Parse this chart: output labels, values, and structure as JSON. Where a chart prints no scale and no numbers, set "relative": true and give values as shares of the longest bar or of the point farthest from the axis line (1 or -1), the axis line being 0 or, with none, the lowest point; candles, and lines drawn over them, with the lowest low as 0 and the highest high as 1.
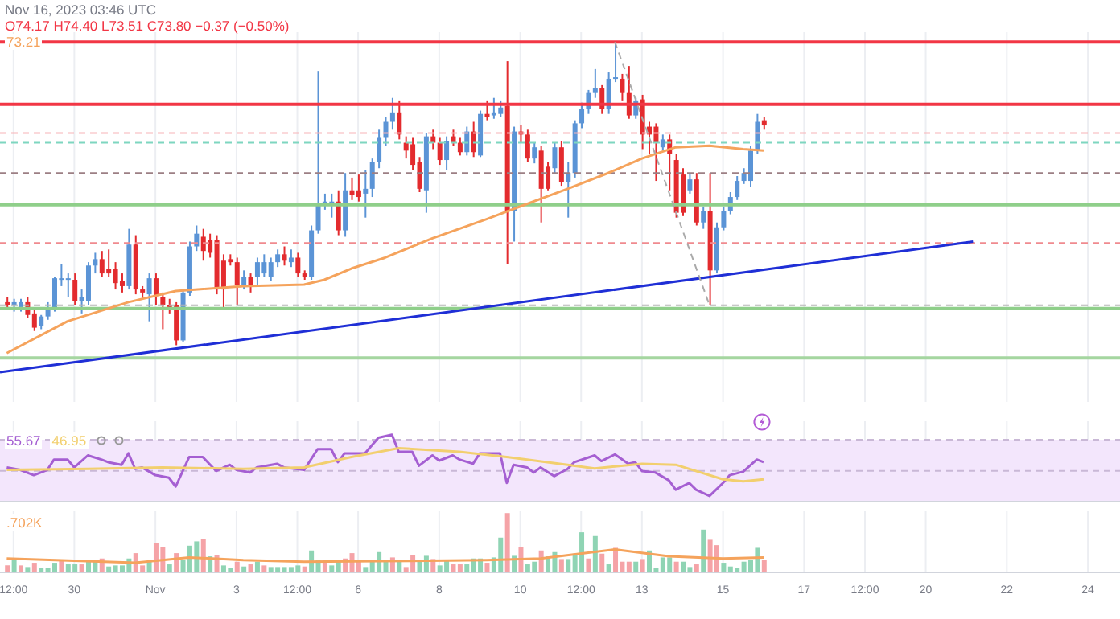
{
  "chart_data": [
    {
      "type": "candlestick",
      "title": "Nov 16, 2023 03:46 UTC",
      "annotations": [
        "O74.17 H74.40 L73.51 C73.80 −0.37 (−0.50%)"
      ],
      "relative": true,
      "grid": "x",
      "tick_labels": false,
      "xlim": [
        "2023-10-28T04:00",
        "2023-11-24T19:00"
      ],
      "xticks": [
        {
          "value": "2023-10-28T12:00",
          "label": null
        },
        {
          "value": "2023-10-30",
          "label": null
        },
        {
          "value": "2023-11-01",
          "label": null
        },
        {
          "value": "2023-11-03",
          "label": null
        },
        {
          "value": "2023-11-04T12:00",
          "label": null
        },
        {
          "value": "2023-11-06",
          "label": null
        },
        {
          "value": "2023-11-08",
          "label": null
        },
        {
          "value": "2023-11-10",
          "label": null
        },
        {
          "value": "2023-11-11T12:00",
          "label": null
        },
        {
          "value": "2023-11-13",
          "label": null
        },
        {
          "value": "2023-11-15",
          "label": null
        },
        {
          "value": "2023-11-17",
          "label": null
        },
        {
          "value": "2023-11-18T12:00",
          "label": null
        },
        {
          "value": "2023-11-20",
          "label": null
        },
        {
          "value": "2023-11-22",
          "label": null
        },
        {
          "value": "2023-11-24",
          "label": null
        }
      ],
      "x": [
        "2023-10-28T08:00",
        "2023-10-28T12:00",
        "2023-10-28T16:00",
        "2023-10-28T20:00",
        "2023-10-29T00:00",
        "2023-10-29T04:00",
        "2023-10-29T08:00",
        "2023-10-29T12:00",
        "2023-10-29T16:00",
        "2023-10-29T20:00",
        "2023-10-30T00:00",
        "2023-10-30T04:00",
        "2023-10-30T08:00",
        "2023-10-30T12:00",
        "2023-10-30T16:00",
        "2023-10-30T20:00",
        "2023-10-31T00:00",
        "2023-10-31T04:00",
        "2023-10-31T08:00",
        "2023-10-31T12:00",
        "2023-10-31T16:00",
        "2023-10-31T20:00",
        "2023-11-01T00:00",
        "2023-11-01T04:00",
        "2023-11-01T08:00",
        "2023-11-01T12:00",
        "2023-11-01T16:00",
        "2023-11-01T20:00",
        "2023-11-02T00:00",
        "2023-11-02T04:00",
        "2023-11-02T08:00",
        "2023-11-02T12:00",
        "2023-11-02T16:00",
        "2023-11-02T20:00",
        "2023-11-03T00:00",
        "2023-11-03T04:00",
        "2023-11-03T08:00",
        "2023-11-03T12:00",
        "2023-11-03T16:00",
        "2023-11-03T20:00",
        "2023-11-04T00:00",
        "2023-11-04T04:00",
        "2023-11-04T08:00",
        "2023-11-04T12:00",
        "2023-11-04T16:00",
        "2023-11-04T20:00",
        "2023-11-05T00:00",
        "2023-11-05T04:00",
        "2023-11-05T08:00",
        "2023-11-05T12:00",
        "2023-11-05T16:00",
        "2023-11-05T20:00",
        "2023-11-06T00:00",
        "2023-11-06T04:00",
        "2023-11-06T08:00",
        "2023-11-06T12:00",
        "2023-11-06T16:00",
        "2023-11-06T20:00",
        "2023-11-07T00:00",
        "2023-11-07T04:00",
        "2023-11-07T08:00",
        "2023-11-07T12:00",
        "2023-11-07T16:00",
        "2023-11-07T20:00",
        "2023-11-08T00:00",
        "2023-11-08T04:00",
        "2023-11-08T08:00",
        "2023-11-08T12:00",
        "2023-11-08T16:00",
        "2023-11-08T20:00",
        "2023-11-09T00:00",
        "2023-11-09T04:00",
        "2023-11-09T08:00",
        "2023-11-09T12:00",
        "2023-11-09T16:00",
        "2023-11-09T20:00",
        "2023-11-10T00:00",
        "2023-11-10T04:00",
        "2023-11-10T08:00",
        "2023-11-10T12:00",
        "2023-11-10T16:00",
        "2023-11-10T20:00",
        "2023-11-11T00:00",
        "2023-11-11T04:00",
        "2023-11-11T08:00",
        "2023-11-11T12:00",
        "2023-11-11T16:00",
        "2023-11-11T20:00",
        "2023-11-12T00:00",
        "2023-11-12T04:00",
        "2023-11-12T08:00",
        "2023-11-12T12:00",
        "2023-11-12T16:00",
        "2023-11-12T20:00",
        "2023-11-13T00:00",
        "2023-11-13T04:00",
        "2023-11-13T08:00",
        "2023-11-13T12:00",
        "2023-11-13T16:00",
        "2023-11-13T20:00",
        "2023-11-14T00:00",
        "2023-11-14T04:00",
        "2023-11-14T08:00",
        "2023-11-14T12:00",
        "2023-11-14T16:00",
        "2023-11-14T20:00",
        "2023-11-15T00:00",
        "2023-11-15T04:00",
        "2023-11-15T08:00",
        "2023-11-15T12:00",
        "2023-11-15T16:00",
        "2023-11-15T20:00",
        "2023-11-16T00:00"
      ],
      "ohlc": [
        [
          0.142,
          0.158,
          0.121,
          0.132
        ],
        [
          0.132,
          0.153,
          0.111,
          0.142
        ],
        [
          0.121,
          0.153,
          0.111,
          0.142
        ],
        [
          0.142,
          0.158,
          0.089,
          0.1
        ],
        [
          0.105,
          0.121,
          0.047,
          0.058
        ],
        [
          0.063,
          0.1,
          0.053,
          0.095
        ],
        [
          0.095,
          0.142,
          0.084,
          0.121
        ],
        [
          0.121,
          0.226,
          0.111,
          0.221
        ],
        [
          0.216,
          0.268,
          0.195,
          0.221
        ],
        [
          0.216,
          0.237,
          0.158,
          0.221
        ],
        [
          0.216,
          0.237,
          0.132,
          0.147
        ],
        [
          0.147,
          0.184,
          0.105,
          0.158
        ],
        [
          0.147,
          0.274,
          0.132,
          0.263
        ],
        [
          0.263,
          0.305,
          0.237,
          0.284
        ],
        [
          0.284,
          0.311,
          0.226,
          0.237
        ],
        [
          0.253,
          0.316,
          0.226,
          0.237
        ],
        [
          0.253,
          0.274,
          0.184,
          0.205
        ],
        [
          0.211,
          0.237,
          0.174,
          0.195
        ],
        [
          0.195,
          0.384,
          0.184,
          0.332
        ],
        [
          0.332,
          0.363,
          0.168,
          0.184
        ],
        [
          0.184,
          0.195,
          0.153,
          0.174
        ],
        [
          0.168,
          0.237,
          0.079,
          0.221
        ],
        [
          0.221,
          0.237,
          0.132,
          0.163
        ],
        [
          0.158,
          0.174,
          0.053,
          0.132
        ],
        [
          0.132,
          0.153,
          0.105,
          0.126
        ],
        [
          0.132,
          0.142,
          0,
          0.016
        ],
        [
          0.016,
          0.184,
          0.011,
          0.174
        ],
        [
          0.174,
          0.342,
          0.163,
          0.326
        ],
        [
          0.326,
          0.395,
          0.311,
          0.368
        ],
        [
          0.358,
          0.384,
          0.279,
          0.311
        ],
        [
          0.347,
          0.368,
          0.289,
          0.305
        ],
        [
          0.347,
          0.363,
          0.168,
          0.184
        ],
        [
          0.279,
          0.3,
          0.116,
          0.184
        ],
        [
          0.284,
          0.3,
          0.263,
          0.274
        ],
        [
          0.274,
          0.289,
          0.132,
          0.2
        ],
        [
          0.2,
          0.247,
          0.184,
          0.226
        ],
        [
          0.226,
          0.237,
          0.174,
          0.195
        ],
        [
          0.226,
          0.289,
          0.195,
          0.274
        ],
        [
          0.237,
          0.3,
          0.226,
          0.274
        ],
        [
          0.226,
          0.289,
          0.211,
          0.274
        ],
        [
          0.274,
          0.316,
          0.258,
          0.3
        ],
        [
          0.3,
          0.326,
          0.263,
          0.279
        ],
        [
          0.274,
          0.316,
          0.258,
          0.289
        ],
        [
          0.289,
          0.305,
          0.226,
          0.237
        ],
        [
          0.237,
          0.247,
          0.216,
          0.226
        ],
        [
          0.226,
          0.395,
          0.216,
          0.379
        ],
        [
          0.379,
          0.905,
          0.368,
          0.468
        ],
        [
          0.468,
          0.5,
          0.447,
          0.474
        ],
        [
          0.468,
          0.5,
          0.421,
          0.474
        ],
        [
          0.474,
          0.511,
          0.363,
          0.379
        ],
        [
          0.379,
          0.568,
          0.358,
          0.511
        ],
        [
          0.511,
          0.553,
          0.479,
          0.495
        ],
        [
          0.511,
          0.563,
          0.474,
          0.489
        ],
        [
          0.5,
          0.579,
          0.421,
          0.516
        ],
        [
          0.516,
          0.616,
          0.489,
          0.605
        ],
        [
          0.605,
          0.711,
          0.584,
          0.684
        ],
        [
          0.684,
          0.753,
          0.658,
          0.737
        ],
        [
          0.737,
          0.816,
          0.711,
          0.768
        ],
        [
          0.768,
          0.805,
          0.679,
          0.695
        ],
        [
          0.668,
          0.689,
          0.616,
          0.642
        ],
        [
          0.663,
          0.684,
          0.579,
          0.595
        ],
        [
          0.605,
          0.621,
          0.505,
          0.516
        ],
        [
          0.511,
          0.7,
          0.437,
          0.689
        ],
        [
          0.689,
          0.711,
          0.647,
          0.668
        ],
        [
          0.668,
          0.684,
          0.595,
          0.611
        ],
        [
          0.611,
          0.689,
          0.579,
          0.674
        ],
        [
          0.689,
          0.711,
          0.658,
          0.668
        ],
        [
          0.668,
          0.684,
          0.626,
          0.637
        ],
        [
          0.637,
          0.721,
          0.626,
          0.705
        ],
        [
          0.705,
          0.737,
          0.621,
          0.637
        ],
        [
          0.626,
          0.774,
          0.621,
          0.763
        ],
        [
          0.763,
          0.805,
          0.742,
          0.753
        ],
        [
          0.758,
          0.816,
          0.747,
          0.768
        ],
        [
          0.763,
          0.805,
          0.753,
          0.784
        ],
        [
          0.789,
          0.937,
          0.268,
          0.442
        ],
        [
          0.442,
          0.721,
          0.342,
          0.705
        ],
        [
          0.705,
          0.726,
          0.668,
          0.695
        ],
        [
          0.695,
          0.711,
          0.605,
          0.616
        ],
        [
          0.616,
          0.668,
          0.6,
          0.653
        ],
        [
          0.642,
          0.658,
          0.405,
          0.516
        ],
        [
          0.589,
          0.605,
          0.511,
          0.516
        ],
        [
          0.584,
          0.668,
          0.568,
          0.653
        ],
        [
          0.653,
          0.674,
          0.526,
          0.537
        ],
        [
          0.537,
          0.605,
          0.421,
          0.568
        ],
        [
          0.568,
          0.742,
          0.553,
          0.732
        ],
        [
          0.732,
          0.8,
          0.716,
          0.779
        ],
        [
          0.779,
          0.842,
          0.763,
          0.832
        ],
        [
          0.832,
          0.911,
          0.816,
          0.847
        ],
        [
          0.847,
          0.858,
          0.763,
          0.779
        ],
        [
          0.779,
          0.9,
          0.763,
          0.879
        ],
        [
          0.879,
          1,
          0.868,
          0.884
        ],
        [
          0.879,
          0.895,
          0.805,
          0.832
        ],
        [
          0.832,
          0.921,
          0.747,
          0.758
        ],
        [
          0.758,
          0.816,
          0.747,
          0.805
        ],
        [
          0.811,
          0.826,
          0.647,
          0.695
        ],
        [
          0.721,
          0.737,
          0.632,
          0.695
        ],
        [
          0.721,
          0.732,
          0.542,
          0.668
        ],
        [
          0.653,
          0.695,
          0.642,
          0.679
        ],
        [
          0.679,
          0.695,
          0.511,
          0.632
        ],
        [
          0.611,
          0.632,
          0.421,
          0.437
        ],
        [
          0.563,
          0.584,
          0.426,
          0.437
        ],
        [
          0.511,
          0.568,
          0.5,
          0.547
        ],
        [
          0.547,
          0.568,
          0.395,
          0.405
        ],
        [
          0.405,
          0.458,
          0.384,
          0.442
        ],
        [
          0.442,
          0.568,
          0.132,
          0.247
        ],
        [
          0.247,
          0.405,
          0.237,
          0.389
        ],
        [
          0.389,
          0.458,
          0.379,
          0.442
        ],
        [
          0.442,
          0.505,
          0.432,
          0.489
        ],
        [
          0.489,
          0.558,
          0.479,
          0.542
        ],
        [
          0.542,
          0.584,
          0.532,
          0.568
        ],
        [
          0.542,
          0.658,
          0.521,
          0.642
        ],
        [
          0.642,
          0.763,
          0.632,
          0.737
        ],
        [
          0.742,
          0.753,
          0.711,
          0.725
        ]
      ],
      "colors": [
        "#e32b2e",
        "#5b94d6",
        "#5b94d6",
        "#e32b2e",
        "#e32b2e",
        "#5b94d6",
        "#5b94d6",
        "#5b94d6",
        "#5b94d6",
        "#5b94d6",
        "#e32b2e",
        "#5b94d6",
        "#5b94d6",
        "#5b94d6",
        "#e32b2e",
        "#e32b2e",
        "#e32b2e",
        "#e32b2e",
        "#5b94d6",
        "#e32b2e",
        "#e32b2e",
        "#5b94d6",
        "#e32b2e",
        "#e32b2e",
        "#e32b2e",
        "#e32b2e",
        "#5b94d6",
        "#5b94d6",
        "#5b94d6",
        "#e32b2e",
        "#e32b2e",
        "#e32b2e",
        "#e32b2e",
        "#e32b2e",
        "#e32b2e",
        "#5b94d6",
        "#e32b2e",
        "#5b94d6",
        "#5b94d6",
        "#5b94d6",
        "#5b94d6",
        "#e32b2e",
        "#5b94d6",
        "#e32b2e",
        "#e32b2e",
        "#5b94d6",
        "#5b94d6",
        "#5b94d6",
        "#5b94d6",
        "#e32b2e",
        "#5b94d6",
        "#e32b2e",
        "#e32b2e",
        "#5b94d6",
        "#5b94d6",
        "#5b94d6",
        "#5b94d6",
        "#5b94d6",
        "#e32b2e",
        "#e32b2e",
        "#e32b2e",
        "#e32b2e",
        "#5b94d6",
        "#e32b2e",
        "#e32b2e",
        "#5b94d6",
        "#e32b2e",
        "#e32b2e",
        "#5b94d6",
        "#e32b2e",
        "#5b94d6",
        "#e32b2e",
        "#5b94d6",
        "#5b94d6",
        "#e32b2e",
        "#5b94d6",
        "#e32b2e",
        "#e32b2e",
        "#5b94d6",
        "#e32b2e",
        "#e32b2e",
        "#5b94d6",
        "#e32b2e",
        "#5b94d6",
        "#5b94d6",
        "#5b94d6",
        "#5b94d6",
        "#5b94d6",
        "#e32b2e",
        "#5b94d6",
        "#5b94d6",
        "#e32b2e",
        "#e32b2e",
        "#5b94d6",
        "#e32b2e",
        "#e32b2e",
        "#e32b2e",
        "#5b94d6",
        "#e32b2e",
        "#e32b2e",
        "#e32b2e",
        "#5b94d6",
        "#e32b2e",
        "#5b94d6",
        "#e32b2e",
        "#5b94d6",
        "#5b94d6",
        "#5b94d6",
        "#5b94d6",
        "#5b94d6",
        "#5b94d6",
        "#5b94d6",
        "#e32b2e"
      ],
      "series": [
        {
          "type": "line",
          "color": "#1f2fd6",
          "x": [
            "2023-10-28T04:00",
            "2023-11-21T04:00"
          ],
          "values": [
            -0.089,
            0.342
          ]
        },
        {
          "type": "line",
          "name": "73.21",
          "color": "#f5a35c",
          "x": [
            "2023-10-28T08:00",
            "2023-10-29T20:00",
            "2023-10-31T08:00",
            "2023-11-01T12:00",
            "2023-11-03T04:00",
            "2023-11-04T16:00",
            "2023-11-05T04:00",
            "2023-11-05T20:00",
            "2023-11-06T16:00",
            "2023-11-07T20:00",
            "2023-11-09T04:00",
            "2023-11-10T00:00",
            "2023-11-11T04:00",
            "2023-11-12T04:00",
            "2023-11-13T00:00",
            "2023-11-13T20:00",
            "2023-11-14T16:00",
            "2023-11-15T12:00",
            "2023-11-16T00:00"
          ],
          "values": [
            -0.026,
            0.079,
            0.142,
            0.179,
            0.195,
            0.2,
            0.216,
            0.253,
            0.289,
            0.353,
            0.416,
            0.458,
            0.516,
            0.568,
            0.616,
            0.653,
            0.658,
            0.647,
            0.642
          ]
        },
        {
          "type": "line",
          "color": "#aaaaaa",
          "line_style": "dashed",
          "x": [
            "2023-11-12T08:00",
            "2023-11-14T16:00"
          ],
          "values": [
            1,
            0.132
          ]
        }
      ],
      "ref_lines": [
        {
          "axis": "y",
          "value": 1,
          "color": "#f23645"
        },
        {
          "axis": "y",
          "value": 0.795,
          "color": "#f23645"
        },
        {
          "axis": "y",
          "value": 0.7,
          "color": "#f7b3b8",
          "line_style": "dashed"
        },
        {
          "axis": "y",
          "value": 0.668,
          "color": "#7ed6c0",
          "line_style": "dashed"
        },
        {
          "axis": "y",
          "value": 0.568,
          "color": "#9c7f84",
          "line_style": "dashed"
        },
        {
          "axis": "y",
          "value": 0.463,
          "color": "#8fcf8a"
        },
        {
          "axis": "y",
          "value": 0.337,
          "color": "#f08a8f",
          "line_style": "dashed"
        },
        {
          "axis": "y",
          "value": 0.132,
          "color": "#b5b5b5",
          "line_style": "dashed"
        },
        {
          "axis": "y",
          "value": 0.121,
          "color": "#8fcf8a"
        },
        {
          "axis": "y",
          "value": -0.042,
          "color": "#a5d6a0"
        }
      ]
    },
    {
      "type": "line",
      "relative": true,
      "grid": "x",
      "tick_labels": false,
      "xlim": [
        "2023-10-28T04:00",
        "2023-11-24T19:00"
      ],
      "xticks": [
        {
          "value": "2023-10-28T12:00",
          "label": null
        },
        {
          "value": "2023-10-30",
          "label": null
        },
        {
          "value": "2023-11-01",
          "label": null
        },
        {
          "value": "2023-11-03",
          "label": null
        },
        {
          "value": "2023-11-04T12:00",
          "label": null
        },
        {
          "value": "2023-11-06",
          "label": null
        },
        {
          "value": "2023-11-08",
          "label": null
        },
        {
          "value": "2023-11-10",
          "label": null
        },
        {
          "value": "2023-11-11T12:00",
          "label": null
        },
        {
          "value": "2023-11-13",
          "label": null
        },
        {
          "value": "2023-11-15",
          "label": null
        },
        {
          "value": "2023-11-17",
          "label": null
        },
        {
          "value": "2023-11-18T12:00",
          "label": null
        },
        {
          "value": "2023-11-20",
          "label": null
        },
        {
          "value": "2023-11-22",
          "label": null
        },
        {
          "value": "2023-11-24",
          "label": null
        }
      ],
      "bands": [
        {
          "axis": "y",
          "from": 0,
          "to": 0.923,
          "color": "#f3e6fc"
        }
      ],
      "ref_lines": [
        {
          "axis": "y",
          "value": 0.923,
          "color": "#c9b8d6",
          "line_style": "dashed"
        },
        {
          "axis": "y",
          "value": 0.458,
          "color": "#c9b8d6",
          "line_style": "dashed"
        }
      ],
      "series": [
        {
          "name": "55.67",
          "color": "#a55fd2",
          "x": [
            "2023-10-28T08:00",
            "2023-10-28T16:00",
            "2023-10-29T00:00",
            "2023-10-29T08:00",
            "2023-10-29T12:00",
            "2023-10-29T20:00",
            "2023-10-30T00:00",
            "2023-10-30T08:00",
            "2023-10-30T16:00",
            "2023-10-30T20:00",
            "2023-10-31T04:00",
            "2023-10-31T08:00",
            "2023-10-31T12:00",
            "2023-10-31T16:00",
            "2023-11-01T00:00",
            "2023-11-01T08:00",
            "2023-11-01T12:00",
            "2023-11-01T20:00",
            "2023-11-02T04:00",
            "2023-11-02T12:00",
            "2023-11-02T20:00",
            "2023-11-03T00:00",
            "2023-11-03T08:00",
            "2023-11-03T12:00",
            "2023-11-04T00:00",
            "2023-11-04T04:00",
            "2023-11-04T16:00",
            "2023-11-05T00:00",
            "2023-11-05T08:00",
            "2023-11-05T12:00",
            "2023-11-05T16:00",
            "2023-11-06T04:00",
            "2023-11-06T12:00",
            "2023-11-06T20:00",
            "2023-11-07T00:00",
            "2023-11-07T08:00",
            "2023-11-07T12:00",
            "2023-11-07T20:00",
            "2023-11-08T00:00",
            "2023-11-08T08:00",
            "2023-11-08T12:00",
            "2023-11-08T20:00",
            "2023-11-09T00:00",
            "2023-11-09T12:00",
            "2023-11-09T16:00",
            "2023-11-09T20:00",
            "2023-11-10T04:00",
            "2023-11-10T08:00",
            "2023-11-10T12:00",
            "2023-11-10T20:00",
            "2023-11-11T04:00",
            "2023-11-11T08:00",
            "2023-11-11T20:00",
            "2023-11-12T00:00",
            "2023-11-12T08:00",
            "2023-11-12T16:00",
            "2023-11-12T20:00",
            "2023-11-13T00:00",
            "2023-11-13T08:00",
            "2023-11-13T16:00",
            "2023-11-13T20:00",
            "2023-11-14T04:00",
            "2023-11-14T08:00",
            "2023-11-14T16:00",
            "2023-11-15T00:00",
            "2023-11-15T04:00",
            "2023-11-15T12:00",
            "2023-11-15T20:00",
            "2023-11-16T00:00"
          ],
          "values": [
            0.511,
            0.473,
            0.395,
            0.473,
            0.628,
            0.628,
            0.511,
            0.69,
            0.628,
            0.589,
            0.55,
            0.721,
            0.489,
            0.511,
            0.395,
            0.357,
            0.225,
            0.667,
            0.667,
            0.457,
            0.55,
            0.473,
            0.434,
            0.511,
            0.565,
            0.511,
            0.473,
            0.783,
            0.783,
            0.589,
            0.721,
            0.721,
            0.953,
            1,
            0.744,
            0.744,
            0.535,
            0.69,
            0.612,
            0.69,
            0.628,
            0.565,
            0.721,
            0.721,
            0.279,
            0.55,
            0.511,
            0.434,
            0.511,
            0.38,
            0.489,
            0.589,
            0.69,
            0.605,
            0.705,
            0.565,
            0.589,
            0.457,
            0.434,
            0.317,
            0.178,
            0.279,
            0.178,
            0.085,
            0.279,
            0.395,
            0.449,
            0.628,
            0.589
          ]
        },
        {
          "name": "46.95",
          "color": "#f2cf6e",
          "x": [
            "2023-10-28T08:00",
            "2023-10-30T08:00",
            "2023-11-01T04:00",
            "2023-11-03T04:00",
            "2023-11-04T16:00",
            "2023-11-05T20:00",
            "2023-11-07T00:00",
            "2023-11-08T12:00",
            "2023-11-09T16:00",
            "2023-11-11T04:00",
            "2023-11-11T20:00",
            "2023-11-13T00:00",
            "2023-11-13T20:00",
            "2023-11-15T00:00",
            "2023-11-15T12:00",
            "2023-11-16T00:00"
          ],
          "values": [
            0.473,
            0.489,
            0.511,
            0.489,
            0.511,
            0.667,
            0.799,
            0.744,
            0.667,
            0.55,
            0.496,
            0.565,
            0.55,
            0.333,
            0.302,
            0.333
          ]
        }
      ]
    },
    {
      "type": "bar",
      "relative": true,
      "grid": "x",
      "tick_labels": "x",
      "xlim": [
        "2023-10-28T04:00",
        "2023-11-24T19:00"
      ],
      "xticks": [
        {
          "value": "2023-10-28T12:00",
          "label": "12:00"
        },
        {
          "value": "2023-10-30",
          "label": "30"
        },
        {
          "value": "2023-11-01",
          "label": "Nov"
        },
        {
          "value": "2023-11-03",
          "label": "3"
        },
        {
          "value": "2023-11-04T12:00",
          "label": "12:00"
        },
        {
          "value": "2023-11-06",
          "label": "6"
        },
        {
          "value": "2023-11-08",
          "label": "8"
        },
        {
          "value": "2023-11-10",
          "label": "10"
        },
        {
          "value": "2023-11-11T12:00",
          "label": "12:00"
        },
        {
          "value": "2023-11-13",
          "label": "13"
        },
        {
          "value": "2023-11-15",
          "label": "15"
        },
        {
          "value": "2023-11-17",
          "label": "17"
        },
        {
          "value": "2023-11-18T12:00",
          "label": "12:00"
        },
        {
          "value": "2023-11-20",
          "label": "20"
        },
        {
          "value": "2023-11-22",
          "label": "22"
        },
        {
          "value": "2023-11-24",
          "label": "24"
        }
      ],
      "x": [
        "2023-10-28T08:00",
        "2023-10-28T12:00",
        "2023-10-28T16:00",
        "2023-10-28T20:00",
        "2023-10-29T00:00",
        "2023-10-29T04:00",
        "2023-10-29T08:00",
        "2023-10-29T12:00",
        "2023-10-29T16:00",
        "2023-10-29T20:00",
        "2023-10-30T00:00",
        "2023-10-30T04:00",
        "2023-10-30T08:00",
        "2023-10-30T12:00",
        "2023-10-30T16:00",
        "2023-10-30T20:00",
        "2023-10-31T00:00",
        "2023-10-31T04:00",
        "2023-10-31T08:00",
        "2023-10-31T12:00",
        "2023-10-31T16:00",
        "2023-10-31T20:00",
        "2023-11-01T00:00",
        "2023-11-01T04:00",
        "2023-11-01T08:00",
        "2023-11-01T12:00",
        "2023-11-01T16:00",
        "2023-11-01T20:00",
        "2023-11-02T00:00",
        "2023-11-02T04:00",
        "2023-11-02T08:00",
        "2023-11-02T12:00",
        "2023-11-02T16:00",
        "2023-11-02T20:00",
        "2023-11-03T00:00",
        "2023-11-03T04:00",
        "2023-11-03T08:00",
        "2023-11-03T12:00",
        "2023-11-03T16:00",
        "2023-11-03T20:00",
        "2023-11-04T00:00",
        "2023-11-04T04:00",
        "2023-11-04T08:00",
        "2023-11-04T12:00",
        "2023-11-04T16:00",
        "2023-11-04T20:00",
        "2023-11-05T00:00",
        "2023-11-05T04:00",
        "2023-11-05T08:00",
        "2023-11-05T12:00",
        "2023-11-05T16:00",
        "2023-11-05T20:00",
        "2023-11-06T00:00",
        "2023-11-06T04:00",
        "2023-11-06T08:00",
        "2023-11-06T12:00",
        "2023-11-06T16:00",
        "2023-11-06T20:00",
        "2023-11-07T00:00",
        "2023-11-07T04:00",
        "2023-11-07T08:00",
        "2023-11-07T12:00",
        "2023-11-07T16:00",
        "2023-11-07T20:00",
        "2023-11-08T00:00",
        "2023-11-08T04:00",
        "2023-11-08T08:00",
        "2023-11-08T12:00",
        "2023-11-08T16:00",
        "2023-11-08T20:00",
        "2023-11-09T00:00",
        "2023-11-09T04:00",
        "2023-11-09T08:00",
        "2023-11-09T12:00",
        "2023-11-09T16:00",
        "2023-11-09T20:00",
        "2023-11-10T00:00",
        "2023-11-10T04:00",
        "2023-11-10T08:00",
        "2023-11-10T12:00",
        "2023-11-10T16:00",
        "2023-11-10T20:00",
        "2023-11-11T00:00",
        "2023-11-11T04:00",
        "2023-11-11T08:00",
        "2023-11-11T12:00",
        "2023-11-11T16:00",
        "2023-11-11T20:00",
        "2023-11-12T00:00",
        "2023-11-12T04:00",
        "2023-11-12T08:00",
        "2023-11-12T12:00",
        "2023-11-12T16:00",
        "2023-11-12T20:00",
        "2023-11-13T00:00",
        "2023-11-13T04:00",
        "2023-11-13T08:00",
        "2023-11-13T12:00",
        "2023-11-13T16:00",
        "2023-11-13T20:00",
        "2023-11-14T00:00",
        "2023-11-14T04:00",
        "2023-11-14T08:00",
        "2023-11-14T12:00",
        "2023-11-14T16:00",
        "2023-11-14T20:00",
        "2023-11-15T00:00",
        "2023-11-15T04:00",
        "2023-11-15T08:00",
        "2023-11-15T12:00",
        "2023-11-15T16:00",
        "2023-11-15T20:00",
        "2023-11-16T00:00"
      ],
      "series": [
        {
          "type": "bar",
          "values": [
            0.117,
            0.225,
            0.117,
            0.09,
            0.162,
            0.072,
            0.072,
            0.162,
            0.189,
            0.135,
            0.135,
            0.135,
            0.18,
            0.207,
            0.234,
            0.099,
            0.117,
            0.117,
            0.234,
            0.324,
            0.117,
            0.18,
            0.495,
            0.432,
            0.135,
            0.324,
            0.207,
            0.45,
            0.523,
            0.568,
            0.27,
            0.297,
            0.117,
            0.072,
            0.18,
            0.099,
            0.135,
            0.18,
            0.117,
            0.09,
            0.09,
            0.09,
            0.09,
            0.117,
            0.099,
            0.369,
            0.207,
            0.207,
            0.117,
            0.207,
            0.234,
            0.324,
            0.207,
            0.09,
            0.207,
            0.342,
            0.207,
            0.252,
            0.207,
            0.09,
            0.297,
            0.207,
            0.279,
            0.225,
            0.117,
            0.207,
            0.135,
            0.135,
            0.135,
            0.234,
            0.234,
            0.162,
            0.252,
            0.586,
            1,
            0.279,
            0.432,
            0.135,
            0.18,
            0.369,
            0.27,
            0.342,
            0.225,
            0.225,
            0.315,
            0.676,
            0.234,
            0.613,
            0.315,
            0.135,
            0.414,
            0.18,
            0.18,
            0.18,
            0.225,
            0.369,
            0.072,
            0.252,
            0.252,
            0.18,
            0.18,
            0.09,
            0.135,
            0.721,
            0.55,
            0.459,
            0.162,
            0.099,
            0.072,
            0.18,
            0.207,
            0.414,
            0.207
          ],
          "colors": [
            "#f5a3a7",
            "#8fd4b4",
            "#f5a3a7",
            "#8fd4b4",
            "#f5a3a7",
            "#8fd4b4",
            "#8fd4b4",
            "#8fd4b4",
            "#f5a3a7",
            "#8fd4b4",
            "#8fd4b4",
            "#f5a3a7",
            "#8fd4b4",
            "#8fd4b4",
            "#f5a3a7",
            "#8fd4b4",
            "#8fd4b4",
            "#8fd4b4",
            "#8fd4b4",
            "#f5a3a7",
            "#f5a3a7",
            "#8fd4b4",
            "#f5a3a7",
            "#f5a3a7",
            "#8fd4b4",
            "#f5a3a7",
            "#8fd4b4",
            "#8fd4b4",
            "#8fd4b4",
            "#f5a3a7",
            "#8fd4b4",
            "#f5a3a7",
            "#8fd4b4",
            "#8fd4b4",
            "#f5a3a7",
            "#8fd4b4",
            "#f5a3a7",
            "#8fd4b4",
            "#f5a3a7",
            "#8fd4b4",
            "#8fd4b4",
            "#8fd4b4",
            "#8fd4b4",
            "#8fd4b4",
            "#f5a3a7",
            "#8fd4b4",
            "#8fd4b4",
            "#f5a3a7",
            "#8fd4b4",
            "#8fd4b4",
            "#f5a3a7",
            "#f5a3a7",
            "#f5a3a7",
            "#8fd4b4",
            "#8fd4b4",
            "#8fd4b4",
            "#8fd4b4",
            "#f5a3a7",
            "#8fd4b4",
            "#f5a3a7",
            "#f5a3a7",
            "#8fd4b4",
            "#8fd4b4",
            "#f5a3a7",
            "#8fd4b4",
            "#8fd4b4",
            "#f5a3a7",
            "#f5a3a7",
            "#8fd4b4",
            "#8fd4b4",
            "#8fd4b4",
            "#f5a3a7",
            "#8fd4b4",
            "#8fd4b4",
            "#f5a3a7",
            "#8fd4b4",
            "#f5a3a7",
            "#8fd4b4",
            "#8fd4b4",
            "#f5a3a7",
            "#8fd4b4",
            "#8fd4b4",
            "#f5a3a7",
            "#8fd4b4",
            "#8fd4b4",
            "#8fd4b4",
            "#f5a3a7",
            "#8fd4b4",
            "#f5a3a7",
            "#8fd4b4",
            "#f5a3a7",
            "#f5a3a7",
            "#f5a3a7",
            "#8fd4b4",
            "#f5a3a7",
            "#8fd4b4",
            "#8fd4b4",
            "#8fd4b4",
            "#8fd4b4",
            "#f5a3a7",
            "#8fd4b4",
            "#8fd4b4",
            "#f5a3a7",
            "#8fd4b4",
            "#f5a3a7",
            "#f5a3a7",
            "#8fd4b4",
            "#8fd4b4",
            "#8fd4b4",
            "#8fd4b4",
            "#8fd4b4",
            "#8fd4b4",
            "#f5a3a7"
          ]
        },
        {
          "type": "line",
          "name": ".702K",
          "color": "#f5a35c",
          "x": [
            "2023-10-28T08:00",
            "2023-10-31T12:00",
            "2023-11-01T20:00",
            "2023-11-03T04:00",
            "2023-11-04T16:00",
            "2023-11-06T12:00",
            "2023-11-09T04:00",
            "2023-11-10T12:00",
            "2023-11-12T08:00",
            "2023-11-13T16:00",
            "2023-11-15T00:00",
            "2023-11-16T00:00"
          ],
          "values": [
            0.234,
            0.162,
            0.252,
            0.207,
            0.18,
            0.189,
            0.207,
            0.234,
            0.387,
            0.27,
            0.234,
            0.252
          ]
        }
      ]
    }
  ]
}
